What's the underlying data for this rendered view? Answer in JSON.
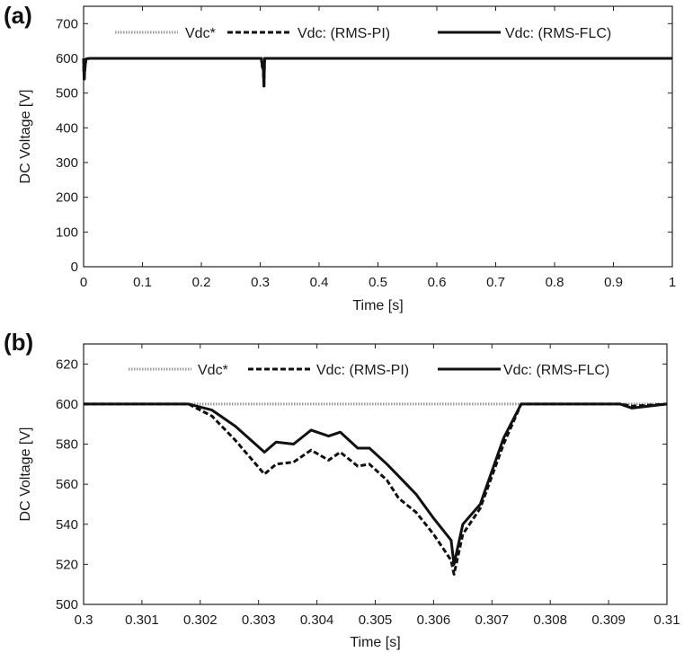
{
  "panels": {
    "a": {
      "label": "(a)"
    },
    "b": {
      "label": "(b)"
    }
  },
  "chart_data": [
    {
      "type": "line",
      "panel": "(a)",
      "xlabel": "Time [s]",
      "ylabel": "DC Voltage [V]",
      "xlim": [
        0,
        1
      ],
      "ylim": [
        0,
        750
      ],
      "xticks": [
        0,
        0.1,
        0.2,
        0.3,
        0.4,
        0.5,
        0.6,
        0.7,
        0.8,
        0.9,
        1
      ],
      "xtick_labels": [
        "0",
        "0.1",
        "0.2",
        "0.3",
        "0.4",
        "0.5",
        "0.6",
        "0.7",
        "0.8",
        "0.9",
        "1"
      ],
      "yticks": [
        0,
        100,
        200,
        300,
        400,
        500,
        600,
        700
      ],
      "ytick_labels": [
        "0",
        "100",
        "200",
        "300",
        "400",
        "500",
        "600",
        "700"
      ],
      "grid": false,
      "legend_position": "top",
      "series": [
        {
          "name": "Vdc*",
          "style": "dotted",
          "color": "#9a9a9a",
          "x": [
            0,
            1
          ],
          "y": [
            600,
            600
          ]
        },
        {
          "name": "Vdc: (RMS-PI)",
          "style": "dashed",
          "color": "#111111",
          "x": [
            0,
            0.0005,
            0.001,
            0.002,
            0.004,
            0.01,
            0.3,
            0.3018,
            0.3035,
            0.305,
            0.3064,
            0.3075,
            0.31,
            1
          ],
          "y": [
            600,
            560,
            535,
            565,
            598,
            600,
            600,
            600,
            575,
            570,
            515,
            600,
            600,
            600
          ]
        },
        {
          "name": "Vdc: (RMS-FLC)",
          "style": "solid",
          "color": "#111111",
          "x": [
            0,
            0.0005,
            0.001,
            0.002,
            0.004,
            0.01,
            0.3,
            0.3018,
            0.3035,
            0.305,
            0.3064,
            0.3075,
            0.31,
            1
          ],
          "y": [
            600,
            565,
            540,
            568,
            598,
            600,
            600,
            600,
            580,
            578,
            520,
            600,
            600,
            600
          ]
        }
      ]
    },
    {
      "type": "line",
      "panel": "(b)",
      "xlabel": "Time [s]",
      "ylabel": "DC Voltage [V]",
      "xlim": [
        0.3,
        0.31
      ],
      "ylim": [
        500,
        630
      ],
      "xticks": [
        0.3,
        0.301,
        0.302,
        0.303,
        0.304,
        0.305,
        0.306,
        0.307,
        0.308,
        0.309,
        0.31
      ],
      "xtick_labels": [
        "0.3",
        "0.301",
        "0.302",
        "0.303",
        "0.304",
        "0.305",
        "0.306",
        "0.307",
        "0.308",
        "0.309",
        "0.31"
      ],
      "yticks": [
        500,
        520,
        540,
        560,
        580,
        600,
        620
      ],
      "ytick_labels": [
        "500",
        "520",
        "540",
        "560",
        "580",
        "600",
        "620"
      ],
      "grid": false,
      "legend_position": "top",
      "series": [
        {
          "name": "Vdc*",
          "style": "dotted",
          "color": "#9a9a9a",
          "x": [
            0.3,
            0.31
          ],
          "y": [
            600,
            600
          ]
        },
        {
          "name": "Vdc: (RMS-PI)",
          "style": "dashed",
          "color": "#111111",
          "x": [
            0.3,
            0.301,
            0.3018,
            0.3022,
            0.3026,
            0.3031,
            0.3033,
            0.3036,
            0.3039,
            0.3042,
            0.3044,
            0.3047,
            0.3049,
            0.3052,
            0.3054,
            0.3057,
            0.306,
            0.3063,
            0.30635,
            0.3065,
            0.3068,
            0.3072,
            0.3075,
            0.3076,
            0.308,
            0.3092,
            0.3094,
            0.31
          ],
          "y": [
            600,
            600,
            600,
            594,
            582,
            565,
            570,
            571,
            577,
            572,
            576,
            569,
            570,
            562,
            553,
            546,
            535,
            522,
            515,
            535,
            548,
            580,
            600,
            600,
            600,
            600,
            599,
            600
          ]
        },
        {
          "name": "Vdc: (RMS-FLC)",
          "style": "solid",
          "color": "#111111",
          "x": [
            0.3,
            0.301,
            0.3018,
            0.3022,
            0.3026,
            0.3031,
            0.3033,
            0.3036,
            0.3039,
            0.3042,
            0.3044,
            0.3047,
            0.3049,
            0.3052,
            0.3054,
            0.3057,
            0.306,
            0.3063,
            0.30635,
            0.3065,
            0.3068,
            0.3072,
            0.3075,
            0.3076,
            0.308,
            0.3092,
            0.3094,
            0.31
          ],
          "y": [
            600,
            600,
            600,
            597,
            589,
            576,
            581,
            580,
            587,
            584,
            586,
            578,
            578,
            570,
            564,
            555,
            543,
            532,
            520,
            540,
            550,
            583,
            600,
            600,
            600,
            600,
            598,
            600
          ]
        }
      ]
    }
  ]
}
